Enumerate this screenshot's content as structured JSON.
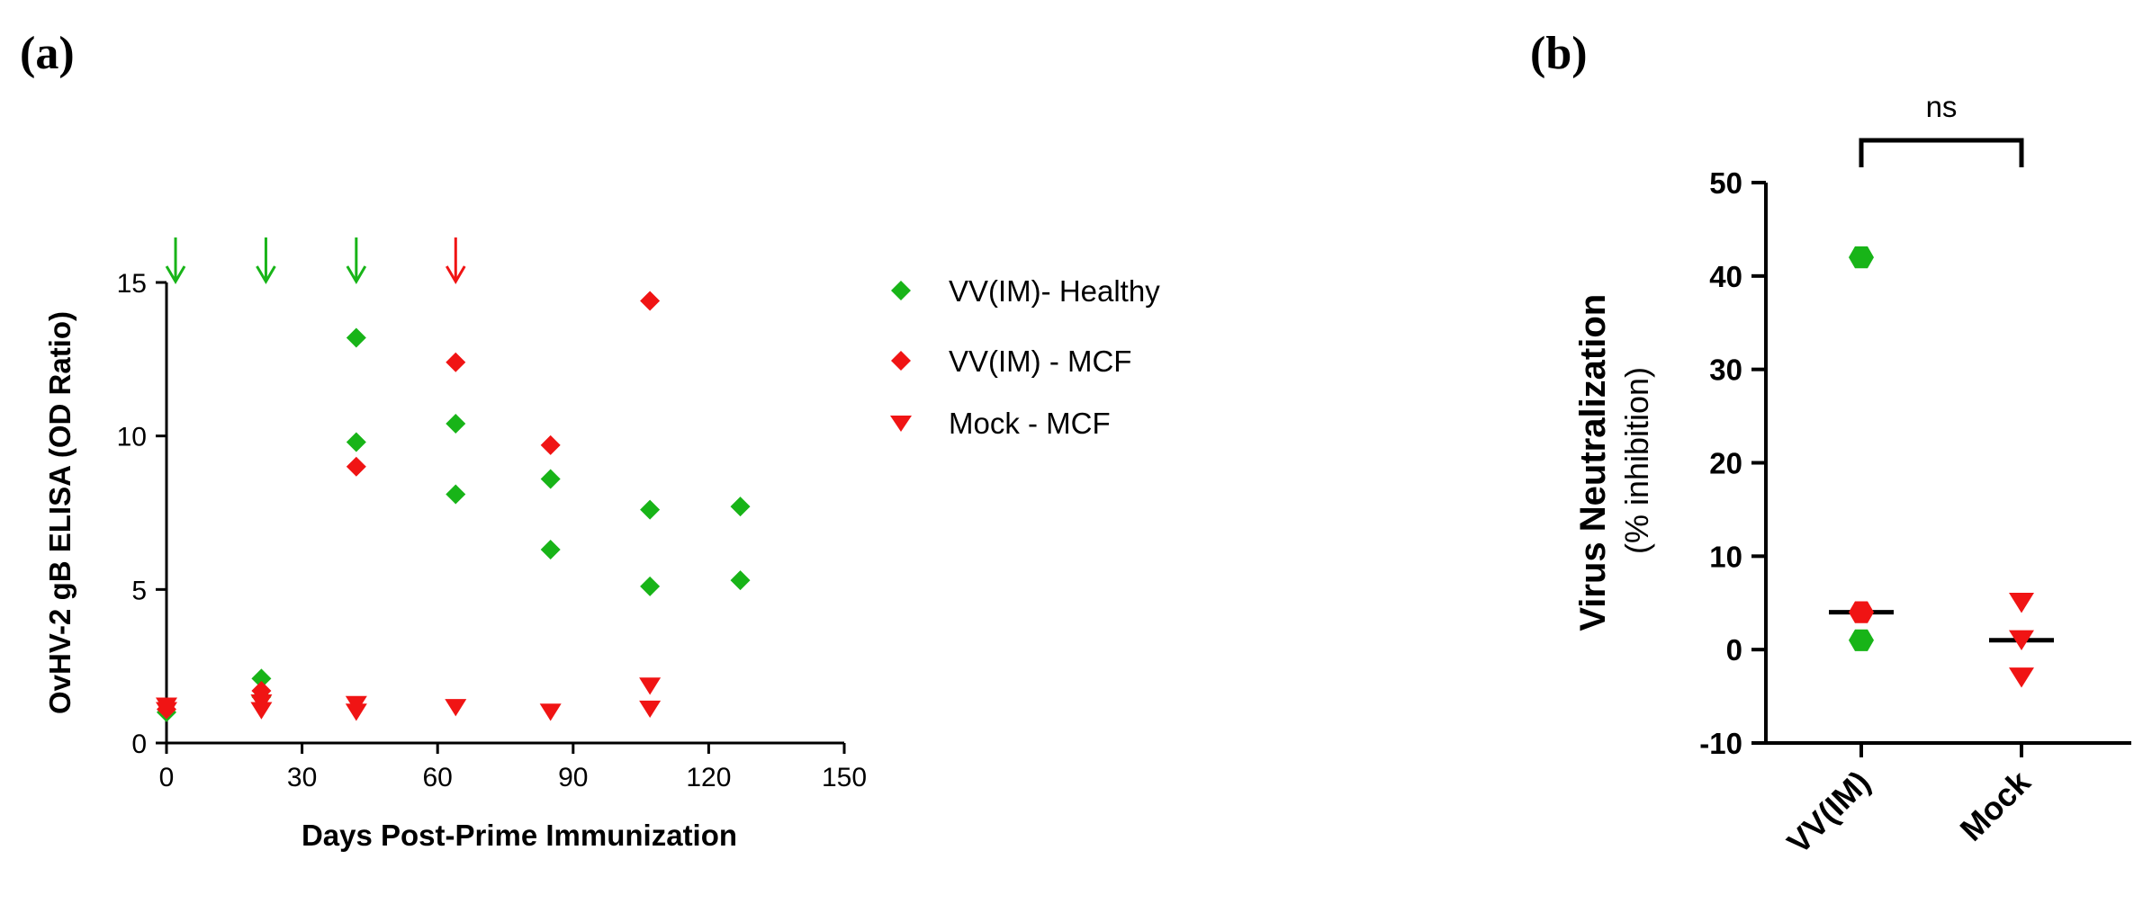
{
  "colors": {
    "green": "#18b418",
    "red": "#f01414",
    "black": "#000000"
  },
  "chart_data": [
    {
      "panel_label": "(a)",
      "type": "scatter",
      "xlabel": "Days Post-Prime Immunization",
      "ylabel": "OvHV-2 gB ELISA (OD Ratio)",
      "xlim": [
        0,
        150
      ],
      "ylim": [
        0,
        15
      ],
      "xticks": [
        "0",
        "30",
        "60",
        "90",
        "120",
        "150"
      ],
      "yticks": [
        "0",
        "5",
        "10",
        "15"
      ],
      "legend_position": "right",
      "series": [
        {
          "name": "VV(IM)- Healthy",
          "marker": "diamond",
          "color": "#18b418",
          "points": [
            [
              0,
              1.0
            ],
            [
              21,
              2.1
            ],
            [
              21,
              1.5
            ],
            [
              42,
              13.2
            ],
            [
              42,
              9.8
            ],
            [
              64,
              10.4
            ],
            [
              64,
              8.1
            ],
            [
              85,
              8.6
            ],
            [
              85,
              6.3
            ],
            [
              107,
              7.6
            ],
            [
              107,
              5.1
            ],
            [
              127,
              7.7
            ],
            [
              127,
              5.3
            ]
          ]
        },
        {
          "name": "VV(IM) - MCF",
          "marker": "diamond",
          "color": "#f01414",
          "points": [
            [
              0,
              1.1
            ],
            [
              21,
              1.7
            ],
            [
              42,
              9.0
            ],
            [
              64,
              12.4
            ],
            [
              85,
              9.7
            ],
            [
              107,
              14.4
            ]
          ]
        },
        {
          "name": "Mock - MCF",
          "marker": "triangle-down",
          "color": "#f01414",
          "points": [
            [
              0,
              1.2
            ],
            [
              0,
              1.05
            ],
            [
              21,
              1.3
            ],
            [
              21,
              1.05
            ],
            [
              42,
              1.25
            ],
            [
              42,
              1.0
            ],
            [
              64,
              1.15
            ],
            [
              85,
              1.0
            ],
            [
              107,
              1.85
            ],
            [
              107,
              1.1
            ]
          ]
        }
      ],
      "arrows": [
        {
          "day": 2,
          "color": "#18b418"
        },
        {
          "day": 22,
          "color": "#18b418"
        },
        {
          "day": 42,
          "color": "#18b418"
        },
        {
          "day": 64,
          "color": "#f01414"
        }
      ]
    },
    {
      "panel_label": "(b)",
      "type": "scatter",
      "ylabel": "Virus Neutralization",
      "ylabel_sub": "(% inhibition)",
      "ylim": [
        -10,
        50
      ],
      "yticks": [
        "-10",
        "0",
        "10",
        "20",
        "30",
        "40",
        "50"
      ],
      "categories": [
        "VV(IM)",
        "Mock"
      ],
      "significance": "ns",
      "groups": [
        {
          "category": "VV(IM)",
          "median": 4,
          "points": [
            {
              "value": 42,
              "marker": "hexagon",
              "color": "#18b418"
            },
            {
              "value": 4,
              "marker": "hexagon",
              "color": "#f01414"
            },
            {
              "value": 1,
              "marker": "hexagon",
              "color": "#18b418"
            }
          ]
        },
        {
          "category": "Mock",
          "median": 1,
          "points": [
            {
              "value": 5,
              "marker": "triangle-down",
              "color": "#f01414"
            },
            {
              "value": 1,
              "marker": "triangle-down",
              "color": "#f01414"
            },
            {
              "value": -3,
              "marker": "triangle-down",
              "color": "#f01414"
            }
          ]
        }
      ]
    }
  ]
}
